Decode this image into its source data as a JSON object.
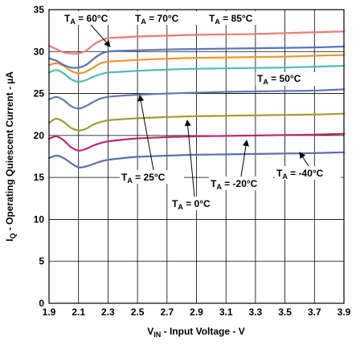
{
  "chart_data": {
    "type": "line",
    "xlabel": {
      "prefix": "V",
      "sub": "IN",
      "rest": " - Input Voltage - V"
    },
    "ylabel": {
      "prefix": "I",
      "sub": "Q",
      "rest": " - Operating Quiescent Current - µA"
    },
    "xlim": [
      1.9,
      3.9
    ],
    "ylim": [
      0,
      35
    ],
    "x_ticks": [
      "1.9",
      "2.1",
      "2.3",
      "2.5",
      "2.7",
      "2.9",
      "3.1",
      "3.3",
      "3.5",
      "3.7",
      "3.9"
    ],
    "y_ticks": [
      "0",
      "5",
      "10",
      "15",
      "20",
      "25",
      "30",
      "35"
    ],
    "grid": true,
    "x": [
      1.9,
      1.95,
      2.0,
      2.05,
      2.1,
      2.15,
      2.2,
      2.25,
      2.3,
      2.4,
      2.5,
      2.7,
      2.9,
      3.1,
      3.3,
      3.5,
      3.7,
      3.9
    ],
    "series": [
      {
        "name": "-40°C",
        "color": "#5b6fb0",
        "values": [
          17.3,
          17.6,
          17.3,
          16.7,
          16.2,
          16.3,
          16.6,
          16.9,
          17.1,
          17.3,
          17.45,
          17.6,
          17.7,
          17.75,
          17.8,
          17.85,
          17.9,
          18.0
        ]
      },
      {
        "name": "-20°C",
        "color": "#c0286a",
        "values": [
          19.6,
          19.9,
          19.4,
          18.6,
          18.2,
          18.4,
          18.8,
          19.1,
          19.3,
          19.5,
          19.65,
          19.8,
          19.9,
          19.95,
          20.0,
          20.05,
          20.1,
          20.2
        ]
      },
      {
        "name": "0°C",
        "color": "#a59a2e",
        "values": [
          21.5,
          22.0,
          21.6,
          20.9,
          20.6,
          20.8,
          21.3,
          21.6,
          21.8,
          21.95,
          22.05,
          22.2,
          22.3,
          22.35,
          22.4,
          22.45,
          22.5,
          22.6
        ]
      },
      {
        "name": "25°C",
        "color": "#6376b5",
        "values": [
          24.3,
          24.6,
          24.2,
          23.5,
          23.2,
          23.5,
          24.0,
          24.4,
          24.6,
          24.75,
          24.85,
          25.0,
          25.1,
          25.2,
          25.25,
          25.3,
          25.35,
          25.5
        ]
      },
      {
        "name": "50°C",
        "color": "#4dbdb3",
        "values": [
          27.5,
          27.8,
          27.4,
          26.7,
          26.4,
          26.6,
          27.0,
          27.3,
          27.5,
          27.6,
          27.7,
          27.85,
          27.95,
          28.0,
          28.05,
          28.1,
          28.2,
          28.3
        ]
      },
      {
        "name": "60°C",
        "color": "#f0962a",
        "values": [
          28.4,
          28.6,
          28.3,
          27.7,
          27.4,
          27.6,
          28.1,
          28.6,
          28.8,
          28.9,
          29.0,
          29.15,
          29.25,
          29.3,
          29.35,
          29.4,
          29.5,
          29.6
        ]
      },
      {
        "name": "70°C",
        "color": "#5676b8",
        "values": [
          29.2,
          28.9,
          28.4,
          28.1,
          28.1,
          28.4,
          29.1,
          29.7,
          30.0,
          30.1,
          30.15,
          30.25,
          30.3,
          30.35,
          30.4,
          30.45,
          30.5,
          30.6
        ]
      },
      {
        "name": "85°C",
        "color": "#e97c6f",
        "values": [
          30.7,
          30.3,
          29.9,
          29.8,
          29.8,
          30.1,
          30.8,
          31.3,
          31.6,
          31.7,
          31.8,
          31.9,
          32.0,
          32.05,
          32.1,
          32.2,
          32.3,
          32.4
        ]
      }
    ],
    "annotations": [
      {
        "prefix": "T",
        "sub": "A",
        "text": " = 60°C"
      },
      {
        "prefix": "T",
        "sub": "A",
        "text": " = 70°C"
      },
      {
        "prefix": "T",
        "sub": "A",
        "text": " = 85°C"
      },
      {
        "prefix": "T",
        "sub": "A",
        "text": " = 50°C"
      },
      {
        "prefix": "T",
        "sub": "A",
        "text": " = 25°C"
      },
      {
        "prefix": "T",
        "sub": "A",
        "text": " = 0°C"
      },
      {
        "prefix": "T",
        "sub": "A",
        "text": " = -20°C"
      },
      {
        "prefix": "T",
        "sub": "A",
        "text": " = -40°C"
      }
    ]
  }
}
